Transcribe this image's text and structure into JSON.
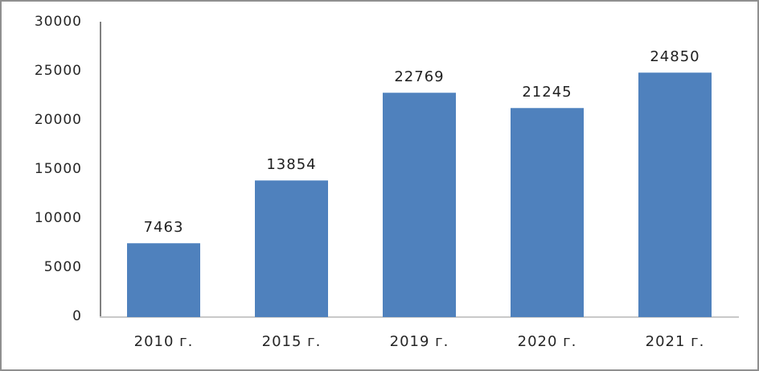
{
  "chart_data": {
    "type": "bar",
    "title": "",
    "xlabel": "",
    "ylabel": "",
    "categories": [
      "2010 г.",
      "2015 г.",
      "2019 г.",
      "2020 г.",
      "2021 г."
    ],
    "values": [
      7463,
      13854,
      22769,
      21245,
      24850
    ],
    "data_labels": [
      "7463",
      "13854",
      "22769",
      "21245",
      "24850"
    ],
    "ylim": [
      0,
      30000
    ],
    "y_ticks": [
      0,
      5000,
      10000,
      15000,
      20000,
      25000,
      30000
    ],
    "y_tick_labels": [
      "0",
      "5000",
      "10000",
      "15000",
      "20000",
      "25000",
      "30000"
    ],
    "grid": false,
    "legend": false,
    "bar_color": "#4f81bd",
    "bar_top_edge_color": "#7ba2d0",
    "y_axis_line_color": "#808080",
    "x_axis_line_color": "#c9c9c9",
    "label_text_color": "#1f1f1f",
    "tick_text_color": "#262626",
    "frame_border_color": "#8f8f8f",
    "background_color": "#ffffff"
  }
}
